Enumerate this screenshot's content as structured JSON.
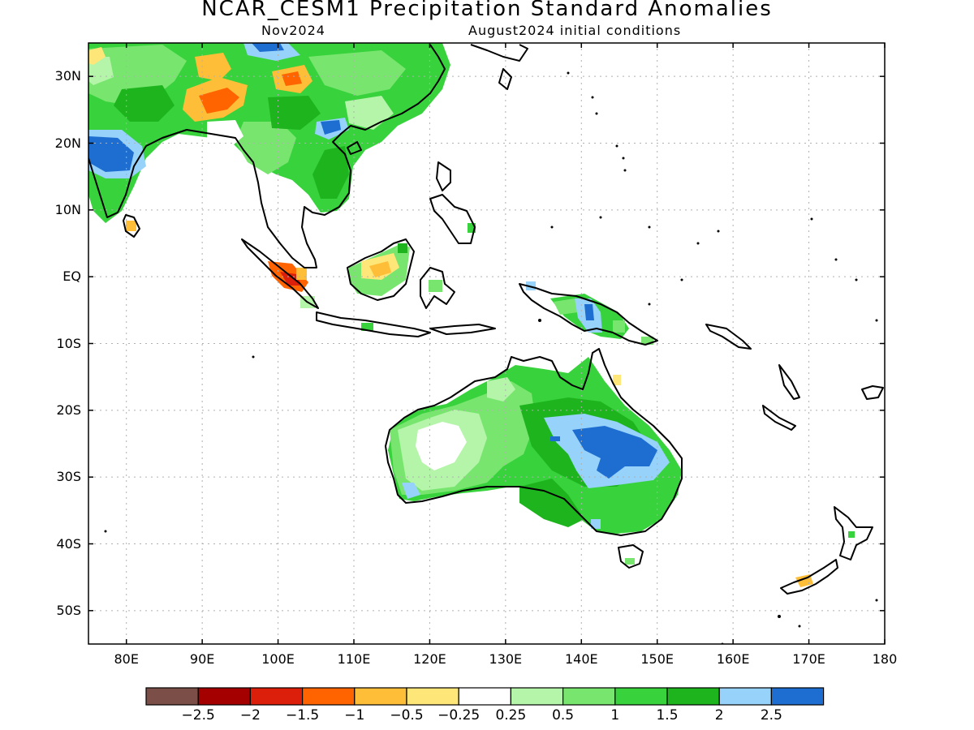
{
  "title": "NCAR_CESM1 Precipitation Standard Anomalies",
  "subtitle_left": "Nov2024",
  "subtitle_right": "August2024 initial conditions",
  "lat_labels": [
    "30N",
    "20N",
    "10N",
    "EQ",
    "10S",
    "20S",
    "30S",
    "40S",
    "50S"
  ],
  "lon_labels": [
    "80E",
    "90E",
    "100E",
    "110E",
    "120E",
    "130E",
    "140E",
    "150E",
    "160E",
    "170E",
    "180"
  ],
  "chart_data": {
    "type": "heatmap",
    "lon_range": [
      75,
      180
    ],
    "lat_range": [
      -55,
      35
    ],
    "lat_ticks": [
      30,
      20,
      10,
      0,
      -10,
      -20,
      -30,
      -40,
      -50
    ],
    "lon_ticks": [
      80,
      90,
      100,
      110,
      120,
      130,
      140,
      150,
      160,
      170,
      180
    ],
    "grid": true,
    "colorbar": {
      "colors": [
        "#7b4f48",
        "#a50000",
        "#dc1f0a",
        "#ff6400",
        "#ffbe37",
        "#ffe678",
        "#ffffff",
        "#b4f5a9",
        "#78e66e",
        "#37d23c",
        "#1eb41e",
        "#96d2fa",
        "#1e6ed2"
      ],
      "labels": [
        "−2.5",
        "−2",
        "−1.5",
        "−1",
        "−0.5",
        "−0.25",
        "0.25",
        "0.5",
        "1",
        "1.5",
        "2",
        "2.5"
      ]
    }
  },
  "colors": {
    "grid": "#b0b0b0",
    "coast": "#000000"
  }
}
